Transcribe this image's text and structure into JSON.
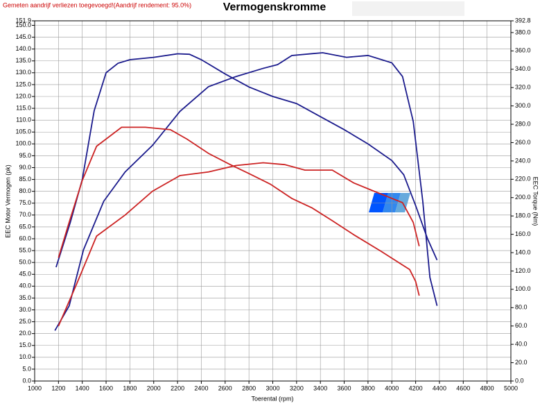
{
  "chart_data": {
    "type": "line",
    "title": "Vermogenskromme",
    "note": "Gemeten aandrijf verliezen toegevoegd!(Aandrijf rendement: 95.0%)",
    "x_label": "Toerental (rpm)",
    "y_label": "EEC Motor Vermogen (pk)",
    "y2_label": "EEC Torque (Nm)",
    "grid": true,
    "xlim": [
      1000,
      5000
    ],
    "xticks": [
      1000,
      1200,
      1400,
      1600,
      1800,
      2000,
      2200,
      2400,
      2600,
      2800,
      3000,
      3200,
      3400,
      3600,
      3800,
      4000,
      4200,
      4400,
      4600,
      4800,
      5000
    ],
    "ylim": [
      0,
      151.9
    ],
    "yticks": [
      {
        "value": 0,
        "label": "0.0"
      },
      {
        "value": 5,
        "label": "5.0"
      },
      {
        "value": 10,
        "label": "10.0"
      },
      {
        "value": 15,
        "label": "15.0"
      },
      {
        "value": 20,
        "label": "20.0"
      },
      {
        "value": 25,
        "label": "25.0"
      },
      {
        "value": 30,
        "label": "30.0"
      },
      {
        "value": 35,
        "label": "35.0"
      },
      {
        "value": 40,
        "label": "40.0"
      },
      {
        "value": 45,
        "label": "45.0"
      },
      {
        "value": 50,
        "label": "50.0"
      },
      {
        "value": 55,
        "label": "55.0"
      },
      {
        "value": 60,
        "label": "60.0"
      },
      {
        "value": 65,
        "label": "65.0"
      },
      {
        "value": 70,
        "label": "70.0"
      },
      {
        "value": 75,
        "label": "75.0"
      },
      {
        "value": 80,
        "label": "80.0"
      },
      {
        "value": 85,
        "label": "85.0"
      },
      {
        "value": 90,
        "label": "90.0"
      },
      {
        "value": 95,
        "label": "95.0"
      },
      {
        "value": 100,
        "label": "100.0"
      },
      {
        "value": 105,
        "label": "105.0"
      },
      {
        "value": 110,
        "label": "110.0"
      },
      {
        "value": 115,
        "label": "115.0"
      },
      {
        "value": 120,
        "label": "120.0"
      },
      {
        "value": 125,
        "label": "125.0"
      },
      {
        "value": 130,
        "label": "130.0"
      },
      {
        "value": 135,
        "label": "135.0"
      },
      {
        "value": 140,
        "label": "140.0"
      },
      {
        "value": 145,
        "label": "145.0"
      },
      {
        "value": 150,
        "label": "150.0"
      },
      {
        "value": 151.9,
        "label": "151.9"
      }
    ],
    "y2lim": [
      0,
      392.8
    ],
    "y2ticks": [
      {
        "value": 0,
        "label": "0.0"
      },
      {
        "value": 20,
        "label": "20.0"
      },
      {
        "value": 40,
        "label": "40.0"
      },
      {
        "value": 60,
        "label": "60.0"
      },
      {
        "value": 80,
        "label": "80.0"
      },
      {
        "value": 100,
        "label": "100.0"
      },
      {
        "value": 120,
        "label": "120.0"
      },
      {
        "value": 140,
        "label": "140.0"
      },
      {
        "value": 160,
        "label": "160.0"
      },
      {
        "value": 180,
        "label": "180.0"
      },
      {
        "value": 200,
        "label": "200.0"
      },
      {
        "value": 220,
        "label": "220.0"
      },
      {
        "value": 240,
        "label": "240.0"
      },
      {
        "value": 260,
        "label": "260.0"
      },
      {
        "value": 280,
        "label": "280.0"
      },
      {
        "value": 300,
        "label": "300.0"
      },
      {
        "value": 320,
        "label": "320.0"
      },
      {
        "value": 340,
        "label": "340.0"
      },
      {
        "value": 360,
        "label": "360.0"
      },
      {
        "value": 380,
        "label": "380.0"
      },
      {
        "value": 392.8,
        "label": "392.8"
      }
    ],
    "series": [
      {
        "color": "#1a1a8c",
        "axis": "y",
        "x": [
          1180,
          1300,
          1400,
          1500,
          1600,
          1700,
          1800,
          2000,
          2200,
          2300,
          2400,
          2600,
          2800,
          3000,
          3200,
          3400,
          3600,
          3800,
          4000,
          4100,
          4200,
          4300,
          4380
        ],
        "values": [
          48,
          67,
          85,
          114,
          130,
          134,
          135.5,
          136.5,
          138,
          137.8,
          135.5,
          129.5,
          124,
          120,
          117,
          111.5,
          106,
          100,
          93,
          87,
          74,
          60,
          51
        ]
      },
      {
        "color": "#1a1a8c",
        "axis": "y2",
        "x": [
          1170,
          1290,
          1410,
          1580,
          1760,
          1990,
          2220,
          2460,
          2690,
          2920,
          3040,
          3160,
          3330,
          3420,
          3620,
          3800,
          4000,
          4090,
          4180,
          4260,
          4320,
          4380
        ],
        "values": [
          55,
          82,
          143,
          196,
          228,
          257,
          294,
          321,
          332,
          341,
          345,
          355,
          357,
          358,
          353,
          355,
          347,
          332,
          283,
          196,
          113,
          82
        ]
      },
      {
        "color": "#cc2222",
        "axis": "y",
        "x": [
          1200,
          1290,
          1400,
          1520,
          1730,
          1930,
          2140,
          2280,
          2460,
          2630,
          2800,
          2980,
          3160,
          3330,
          3500,
          3680,
          3910,
          4150,
          4200,
          4230
        ],
        "values": [
          52,
          67,
          84.6,
          99,
          107,
          107,
          106,
          102,
          96,
          91.6,
          87.5,
          83,
          77,
          73,
          67.6,
          61.7,
          54.7,
          47,
          42,
          36
        ]
      },
      {
        "color": "#cc2222",
        "axis": "y2",
        "x": [
          1200,
          1350,
          1520,
          1760,
          1990,
          2220,
          2460,
          2690,
          2920,
          3100,
          3270,
          3500,
          3680,
          3850,
          4090,
          4180,
          4230
        ],
        "values": [
          60,
          105,
          158,
          181,
          207,
          224,
          228,
          235,
          238,
          236,
          230,
          230,
          216,
          207,
          194.5,
          173,
          147
        ]
      }
    ]
  }
}
